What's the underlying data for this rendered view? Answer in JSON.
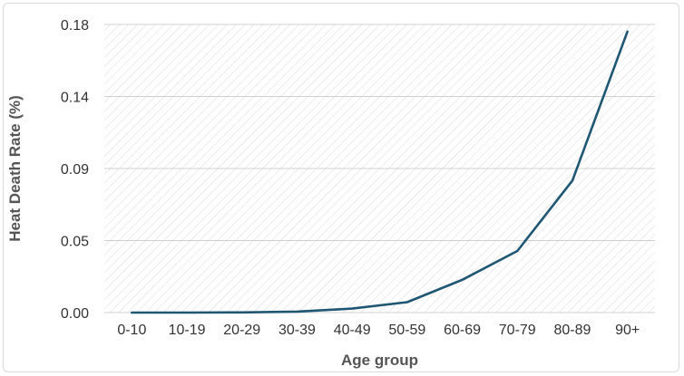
{
  "chart_data": {
    "type": "line",
    "categories": [
      "0-10",
      "10-19",
      "20-29",
      "30-39",
      "40-49",
      "50-59",
      "60-69",
      "70-79",
      "80-89",
      "90+"
    ],
    "series": [
      {
        "values": [
          0.0,
          0.0,
          0.0001,
          0.0006,
          0.0025,
          0.0065,
          0.0205,
          0.0385,
          0.0825,
          0.1755
        ]
      }
    ],
    "y_ticks": [
      "0.00",
      "0.05",
      "0.09",
      "0.14",
      "0.18"
    ],
    "ylim": [
      0,
      0.18
    ],
    "xlabel": "Age group",
    "ylabel": "Heat Death Rate (%)",
    "grid": true,
    "line_color": "#1f5673",
    "grid_color": "#d0d0d0",
    "hatch_color": "#dedede"
  }
}
